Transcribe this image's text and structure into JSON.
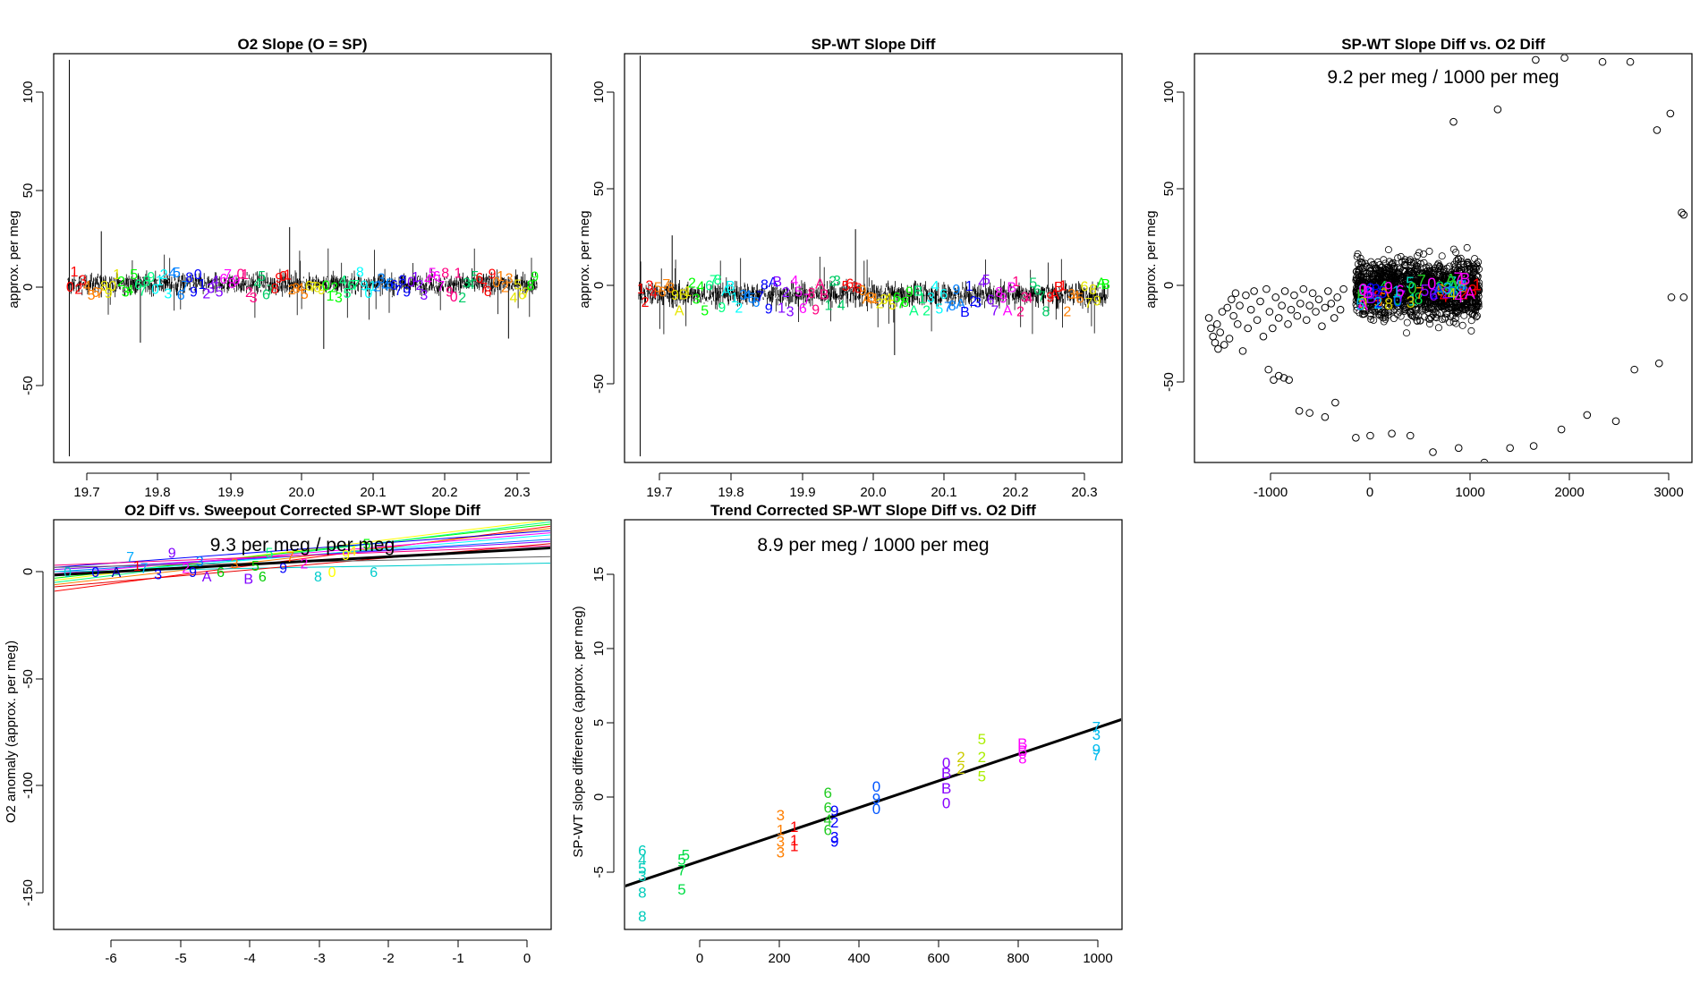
{
  "chart_data": [
    {
      "id": "p1",
      "type": "line",
      "title": "O2 Slope (O = SP)",
      "xlabel": "",
      "ylabel": "approx. per meg",
      "xlim": [
        19.65,
        20.35
      ],
      "ylim": [
        -85,
        113
      ],
      "x_ticks": [
        19.7,
        19.8,
        19.9,
        20.0,
        20.1,
        20.2,
        20.3
      ],
      "x_tick_labels": [
        "19.7",
        "19.8",
        "19.9",
        "20.0",
        "20.1",
        "20.2",
        "20.3"
      ],
      "y_ticks": [
        100,
        50,
        0,
        -50
      ],
      "y_tick_labels": [
        "100",
        "50",
        "0",
        "-50"
      ],
      "series": {
        "mean": 0,
        "band_low": -8,
        "band_high": 11,
        "x_start": 19.67,
        "x_end": 20.33,
        "spikes": [
          {
            "x": 19.672,
            "lo": -82,
            "hi": 110
          },
          {
            "x": 19.717,
            "lo": -5,
            "hi": 27
          },
          {
            "x": 19.772,
            "lo": -27,
            "hi": 5
          },
          {
            "x": 19.982,
            "lo": -5,
            "hi": 29
          },
          {
            "x": 20.03,
            "lo": -30,
            "hi": 5
          },
          {
            "x": 20.29,
            "lo": -25,
            "hi": 5
          }
        ],
        "marker_y_range": [
          -5,
          8
        ],
        "marker_labels": [
          "0",
          "1",
          "2",
          "3",
          "4",
          "5",
          "6",
          "7",
          "8",
          "9"
        ],
        "marker_count": 110
      }
    },
    {
      "id": "p2",
      "type": "line",
      "title": "SP-WT Slope Diff",
      "xlabel": "",
      "ylabel": "approx. per meg",
      "xlim": [
        19.65,
        20.35
      ],
      "ylim": [
        -85,
        113
      ],
      "x_ticks": [
        19.7,
        19.8,
        19.9,
        20.0,
        20.1,
        20.2,
        20.3
      ],
      "x_tick_labels": [
        "19.7",
        "19.8",
        "19.9",
        "20.0",
        "20.1",
        "20.2",
        "20.3"
      ],
      "y_ticks": [
        100,
        50,
        0,
        -50
      ],
      "y_tick_labels": [
        "100",
        "50",
        "0",
        "-50"
      ],
      "series": {
        "mean": -5,
        "band_low": -15,
        "band_high": 8,
        "x_start": 19.67,
        "x_end": 20.33,
        "spikes": [
          {
            "x": 19.672,
            "lo": -82,
            "hi": 112
          },
          {
            "x": 19.717,
            "lo": -10,
            "hi": 25
          },
          {
            "x": 19.975,
            "lo": -10,
            "hi": 28
          },
          {
            "x": 20.03,
            "lo": -33,
            "hi": 0
          }
        ],
        "marker_y_range": [
          -12,
          4
        ],
        "marker_labels": [
          "1",
          "2",
          "3",
          "4",
          "5",
          "6",
          "7",
          "8",
          "9",
          "A",
          "B"
        ],
        "marker_count": 110
      }
    },
    {
      "id": "p3",
      "type": "scatter",
      "title": "SP-WT Slope Diff vs. O2 Diff",
      "annotation": "9.2 per meg / 1000 per meg",
      "xlabel": "",
      "ylabel": "approx. per meg",
      "xlim": [
        -1720,
        3120
      ],
      "ylim": [
        -85,
        113
      ],
      "x_ticks": [
        -1000,
        0,
        1000,
        2000,
        3000
      ],
      "x_tick_labels": [
        "-1000",
        "0",
        "1000",
        "2000",
        "3000"
      ],
      "y_ticks": [
        100,
        50,
        0,
        -50
      ],
      "y_tick_labels": [
        "100",
        "50",
        "0",
        "-50"
      ],
      "scatter_points": [
        [
          -1580,
          -15
        ],
        [
          -1560,
          -20
        ],
        [
          -1540,
          -24
        ],
        [
          -1520,
          -27
        ],
        [
          -1500,
          -18
        ],
        [
          -1490,
          -30
        ],
        [
          -1470,
          -22
        ],
        [
          -1450,
          -12
        ],
        [
          -1430,
          -28
        ],
        [
          -1400,
          -10
        ],
        [
          -1380,
          -25
        ],
        [
          -1360,
          -6
        ],
        [
          -1340,
          -14
        ],
        [
          -1320,
          -3
        ],
        [
          -1300,
          -18
        ],
        [
          -1280,
          -9
        ],
        [
          -1250,
          -31
        ],
        [
          -1220,
          -4
        ],
        [
          -1200,
          -20
        ],
        [
          -1170,
          -11
        ],
        [
          -1140,
          -2
        ],
        [
          -1110,
          -16
        ],
        [
          -1080,
          -7
        ],
        [
          -1050,
          -24
        ],
        [
          -1020,
          -1
        ],
        [
          -990,
          -12
        ],
        [
          -960,
          -20
        ],
        [
          -930,
          -5
        ],
        [
          -900,
          -15
        ],
        [
          -870,
          -9
        ],
        [
          -840,
          -2
        ],
        [
          -810,
          -18
        ],
        [
          -780,
          -11
        ],
        [
          -750,
          -4
        ],
        [
          -720,
          -14
        ],
        [
          -690,
          -8
        ],
        [
          -660,
          -1
        ],
        [
          -630,
          -16
        ],
        [
          -600,
          -9
        ],
        [
          -570,
          -3
        ],
        [
          -540,
          -12
        ],
        [
          -510,
          -6
        ],
        [
          -480,
          -19
        ],
        [
          -450,
          -10
        ],
        [
          -420,
          -2
        ],
        [
          -390,
          -8
        ],
        [
          -360,
          -15
        ],
        [
          -330,
          -5
        ],
        [
          -300,
          -11
        ],
        [
          -270,
          -1
        ],
        [
          -1000,
          -40
        ],
        [
          -950,
          -45
        ],
        [
          -900,
          -43
        ],
        [
          -850,
          -44
        ],
        [
          -800,
          -45
        ],
        [
          -700,
          -60
        ],
        [
          -600,
          -61
        ],
        [
          -450,
          -63
        ],
        [
          -350,
          -56
        ],
        [
          -150,
          -73
        ],
        [
          -10,
          -72
        ],
        [
          200,
          -71
        ],
        [
          380,
          -72
        ],
        [
          600,
          -80
        ],
        [
          850,
          -78
        ],
        [
          1100,
          -85
        ],
        [
          1350,
          -78
        ],
        [
          1580,
          -77
        ],
        [
          1850,
          -69
        ],
        [
          2100,
          -62
        ],
        [
          2380,
          -65
        ],
        [
          2560,
          -40
        ],
        [
          2800,
          -37
        ],
        [
          2920,
          -5
        ],
        [
          3040,
          -5
        ],
        [
          3020,
          36
        ],
        [
          3040,
          35
        ],
        [
          2910,
          84
        ],
        [
          2780,
          76
        ],
        [
          2520,
          109
        ],
        [
          2250,
          109
        ],
        [
          1880,
          111
        ],
        [
          1600,
          110
        ],
        [
          1230,
          86
        ],
        [
          800,
          80
        ]
      ],
      "dense_cluster": {
        "x_range": [
          -150,
          1050
        ],
        "y_range": [
          -30,
          28
        ],
        "count": 1400
      },
      "digit_labels": [
        "7",
        "6",
        "5",
        "2",
        "1",
        "8",
        "3",
        "4",
        "9",
        "0",
        "A",
        "B"
      ]
    },
    {
      "id": "p4",
      "type": "line",
      "title": "O2 Diff vs. Sweepout Corrected SP-WT Slope Diff",
      "annotation": "9.3 per meg / per meg",
      "xlabel": "",
      "ylabel": "O2 anomaly (approx. per meg)",
      "xlim": [
        -6.8,
        0.35
      ],
      "ylim": [
        -165,
        24
      ],
      "x_ticks": [
        -6,
        -5,
        -4,
        -3,
        -2,
        -1,
        0
      ],
      "x_tick_labels": [
        "-6",
        "-5",
        "-4",
        "-3",
        "-2",
        "-1",
        "0"
      ],
      "y_ticks": [
        0,
        -50,
        -100,
        -150
      ],
      "y_tick_labels": [
        "0",
        "-50",
        "-100",
        "-150"
      ],
      "fit_line": {
        "x": [
          -6.8,
          0.35
        ],
        "y": [
          -1.5,
          11
        ],
        "color": "#000000"
      },
      "thin_lines": [
        {
          "y0": -9,
          "y1": 21,
          "color": "#ff0000"
        },
        {
          "y0": -6,
          "y1": 20,
          "color": "#ff7f00"
        },
        {
          "y0": -4,
          "y1": 24,
          "color": "#ffff00"
        },
        {
          "y0": -3,
          "y1": 22,
          "color": "#00ff00"
        },
        {
          "y0": -5,
          "y1": 23,
          "color": "#00ff80"
        },
        {
          "y0": -2,
          "y1": 17,
          "color": "#00ffff"
        },
        {
          "y0": 0,
          "y1": 15,
          "color": "#0080ff"
        },
        {
          "y0": 2,
          "y1": 19,
          "color": "#0000ff"
        },
        {
          "y0": 1,
          "y1": 14,
          "color": "#8000ff"
        },
        {
          "y0": -1,
          "y1": 18,
          "color": "#ff00ff"
        },
        {
          "y0": 3,
          "y1": 12,
          "color": "#ff0080"
        },
        {
          "y0": 0,
          "y1": 4,
          "color": "#00cccc"
        },
        {
          "y0": -7,
          "y1": 13,
          "color": "#e60000"
        },
        {
          "y0": 2,
          "y1": 7,
          "color": "#606060"
        }
      ],
      "digit_points": [
        {
          "x": -6.6,
          "y": 0,
          "label": "0",
          "color": "#00cccc"
        },
        {
          "x": -6.2,
          "y": 0,
          "label": "0",
          "color": "#0000ff"
        },
        {
          "x": -5.7,
          "y": 7,
          "label": "7",
          "color": "#00aaff"
        },
        {
          "x": -5.9,
          "y": 0,
          "label": "A",
          "color": "#0000aa"
        },
        {
          "x": -5.5,
          "y": 2,
          "label": "7",
          "color": "#00aaff"
        },
        {
          "x": -5.3,
          "y": -1,
          "label": "3",
          "color": "#0000ff"
        },
        {
          "x": -5.1,
          "y": 9,
          "label": "9",
          "color": "#8000ff"
        },
        {
          "x": -4.9,
          "y": 2,
          "label": "2",
          "color": "#ff00ff"
        },
        {
          "x": -4.8,
          "y": 0,
          "label": "9",
          "color": "#0000ff"
        },
        {
          "x": -4.6,
          "y": -2,
          "label": "A",
          "color": "#8000ff"
        },
        {
          "x": -4.4,
          "y": 0,
          "label": "6",
          "color": "#00cc00"
        },
        {
          "x": -4.2,
          "y": 4,
          "label": "3",
          "color": "#ff7f00"
        },
        {
          "x": -4.0,
          "y": -3,
          "label": "B",
          "color": "#8000ff"
        },
        {
          "x": -3.9,
          "y": 3,
          "label": "5",
          "color": "#00cc00"
        },
        {
          "x": -3.8,
          "y": -2,
          "label": "6",
          "color": "#00cc00"
        },
        {
          "x": -3.5,
          "y": 2,
          "label": "9",
          "color": "#0000ff"
        },
        {
          "x": -3.2,
          "y": 4,
          "label": "2",
          "color": "#ff00ff"
        },
        {
          "x": -3.0,
          "y": -2,
          "label": "8",
          "color": "#00cccc"
        },
        {
          "x": -2.8,
          "y": 0,
          "label": "0",
          "color": "#ffff00"
        },
        {
          "x": -2.6,
          "y": 8,
          "label": "9",
          "color": "#ffff00"
        },
        {
          "x": -2.3,
          "y": 13,
          "label": "5",
          "color": "#00ff00"
        },
        {
          "x": -2.2,
          "y": 0,
          "label": "6",
          "color": "#00cccc"
        },
        {
          "x": -3.7,
          "y": 9,
          "label": "5",
          "color": "#00ff80"
        },
        {
          "x": -4.7,
          "y": 5,
          "label": "3",
          "color": "#0080ff"
        },
        {
          "x": -5.6,
          "y": 3,
          "label": "1",
          "color": "#ff0000"
        },
        {
          "x": -3.4,
          "y": 7,
          "label": "7",
          "color": "#ff7f00"
        },
        {
          "x": -2.5,
          "y": 10,
          "label": "4",
          "color": "#ffff00"
        }
      ]
    },
    {
      "id": "p5",
      "type": "scatter",
      "title": "Trend Corrected SP-WT Slope Diff vs. O2 Diff",
      "annotation": "8.9 per meg / 1000 per meg",
      "xlabel": "",
      "ylabel": "SP-WT slope difference (approx. per meg)",
      "xlim": [
        -190,
        1070
      ],
      "ylim": [
        -9,
        18.5
      ],
      "x_ticks": [
        0,
        200,
        400,
        600,
        800,
        1000
      ],
      "x_tick_labels": [
        "0",
        "200",
        "400",
        "600",
        "800",
        "1000"
      ],
      "y_ticks": [
        15,
        10,
        5,
        0,
        -5
      ],
      "y_tick_labels": [
        "15",
        "10",
        "5",
        "0",
        "-5"
      ],
      "fit_line": {
        "x": [
          -190,
          1070
        ],
        "y": [
          -6.1,
          5.1
        ]
      },
      "digit_points": [
        {
          "x": -145,
          "y": -3.7,
          "label": "6",
          "color": "#00ccbb"
        },
        {
          "x": -145,
          "y": -4.3,
          "label": "4",
          "color": "#00ccbb"
        },
        {
          "x": -145,
          "y": -4.9,
          "label": "5",
          "color": "#00ccbb"
        },
        {
          "x": -145,
          "y": -5.4,
          "label": "3",
          "color": "#00ccbb"
        },
        {
          "x": -145,
          "y": -6.5,
          "label": "8",
          "color": "#00ccbb"
        },
        {
          "x": -145,
          "y": -8.1,
          "label": "8",
          "color": "#00ccbb"
        },
        {
          "x": -45,
          "y": -4.3,
          "label": "5",
          "color": "#00dd44"
        },
        {
          "x": -45,
          "y": -5.0,
          "label": "7",
          "color": "#00dd44"
        },
        {
          "x": -45,
          "y": -6.3,
          "label": "5",
          "color": "#00dd44"
        },
        {
          "x": -35,
          "y": -4.0,
          "label": "5",
          "color": "#00dd44"
        },
        {
          "x": 205,
          "y": -1.3,
          "label": "3",
          "color": "#ff7f00"
        },
        {
          "x": 205,
          "y": -2.3,
          "label": "1",
          "color": "#ff7f00"
        },
        {
          "x": 205,
          "y": -3.1,
          "label": "3",
          "color": "#ff7f00"
        },
        {
          "x": 205,
          "y": -3.8,
          "label": "3",
          "color": "#ff7f00"
        },
        {
          "x": 240,
          "y": -2.1,
          "label": "1",
          "color": "#ff0000"
        },
        {
          "x": 240,
          "y": -3.0,
          "label": "1",
          "color": "#ff0000"
        },
        {
          "x": 240,
          "y": -3.4,
          "label": "1",
          "color": "#ff0000"
        },
        {
          "x": 325,
          "y": 0.2,
          "label": "6",
          "color": "#22cc22"
        },
        {
          "x": 325,
          "y": -0.8,
          "label": "6",
          "color": "#22cc22"
        },
        {
          "x": 325,
          "y": -1.6,
          "label": "4",
          "color": "#22cc22"
        },
        {
          "x": 325,
          "y": -2.3,
          "label": "6",
          "color": "#22cc22"
        },
        {
          "x": 342,
          "y": -1.0,
          "label": "9",
          "color": "#0000ff"
        },
        {
          "x": 342,
          "y": -1.8,
          "label": "2",
          "color": "#0000ff"
        },
        {
          "x": 342,
          "y": -2.8,
          "label": "3",
          "color": "#0000ff"
        },
        {
          "x": 342,
          "y": -3.1,
          "label": "9",
          "color": "#0000ff"
        },
        {
          "x": 448,
          "y": 0.6,
          "label": "0",
          "color": "#0055ff"
        },
        {
          "x": 448,
          "y": -0.2,
          "label": "9",
          "color": "#0055ff"
        },
        {
          "x": 448,
          "y": -0.9,
          "label": "0",
          "color": "#0055ff"
        },
        {
          "x": 625,
          "y": 2.2,
          "label": "0",
          "color": "#8800ff"
        },
        {
          "x": 625,
          "y": 1.5,
          "label": "B",
          "color": "#8800ff"
        },
        {
          "x": 625,
          "y": 0.5,
          "label": "B",
          "color": "#8800ff"
        },
        {
          "x": 625,
          "y": -0.5,
          "label": "0",
          "color": "#8800ff"
        },
        {
          "x": 662,
          "y": 2.6,
          "label": "2",
          "color": "#cccc00"
        },
        {
          "x": 662,
          "y": 1.8,
          "label": "2",
          "color": "#cccc00"
        },
        {
          "x": 715,
          "y": 3.8,
          "label": "5",
          "color": "#aaee00"
        },
        {
          "x": 715,
          "y": 2.6,
          "label": "2",
          "color": "#aaee00"
        },
        {
          "x": 715,
          "y": 1.3,
          "label": "5",
          "color": "#aaee00"
        },
        {
          "x": 818,
          "y": 3.5,
          "label": "B",
          "color": "#ff00ff"
        },
        {
          "x": 818,
          "y": 3.0,
          "label": "B",
          "color": "#ff00ff"
        },
        {
          "x": 818,
          "y": 2.5,
          "label": "8",
          "color": "#ff00ff"
        },
        {
          "x": 1005,
          "y": 4.6,
          "label": "7",
          "color": "#00bbee"
        },
        {
          "x": 1005,
          "y": 4.1,
          "label": "3",
          "color": "#00bbee"
        },
        {
          "x": 1005,
          "y": 3.1,
          "label": "9",
          "color": "#00bbee"
        },
        {
          "x": 1005,
          "y": 2.7,
          "label": "7",
          "color": "#00bbee"
        }
      ]
    }
  ]
}
